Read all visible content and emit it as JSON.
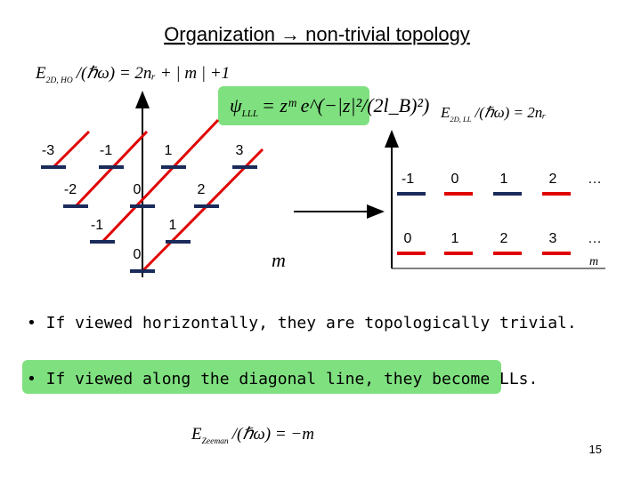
{
  "title": "Organization → non-trivial topology",
  "formulas": {
    "ho": {
      "main": "E",
      "sub": "2D, HO",
      "rest": "/(ℏω) = 2nᵣ + | m | +1"
    },
    "lll": {
      "main": "ψ",
      "sub": "LLL",
      "rest": "= zᵐ e^(−|z|²/(2l_B)²)"
    },
    "ll": {
      "main": "E",
      "sub": "2D, LL",
      "rest": "/(ℏω) = 2nᵣ"
    },
    "zeeman": {
      "main": "E",
      "sub": "Zeeman",
      "rest": "/(ℏω) = −m"
    }
  },
  "left_diagram": {
    "levels": [
      {
        "label": "-3"
      },
      {
        "label": "-1"
      },
      {
        "label": "1"
      },
      {
        "label": "3"
      },
      {
        "label": "-2"
      },
      {
        "label": "0"
      },
      {
        "label": "2"
      },
      {
        "label": "-1"
      },
      {
        "label": "1"
      },
      {
        "label": "0"
      }
    ],
    "axis_label": "m"
  },
  "right_diagram": {
    "top_row": [
      "-1",
      "0",
      "1",
      "2",
      "…"
    ],
    "bottom_row": [
      "0",
      "1",
      "2",
      "3",
      "…"
    ],
    "axis_label": "m"
  },
  "bullets": [
    "• If viewed horizontally, they are topologically trivial.",
    "• If viewed along the diagonal line, they become LLs."
  ],
  "page_number": "15"
}
